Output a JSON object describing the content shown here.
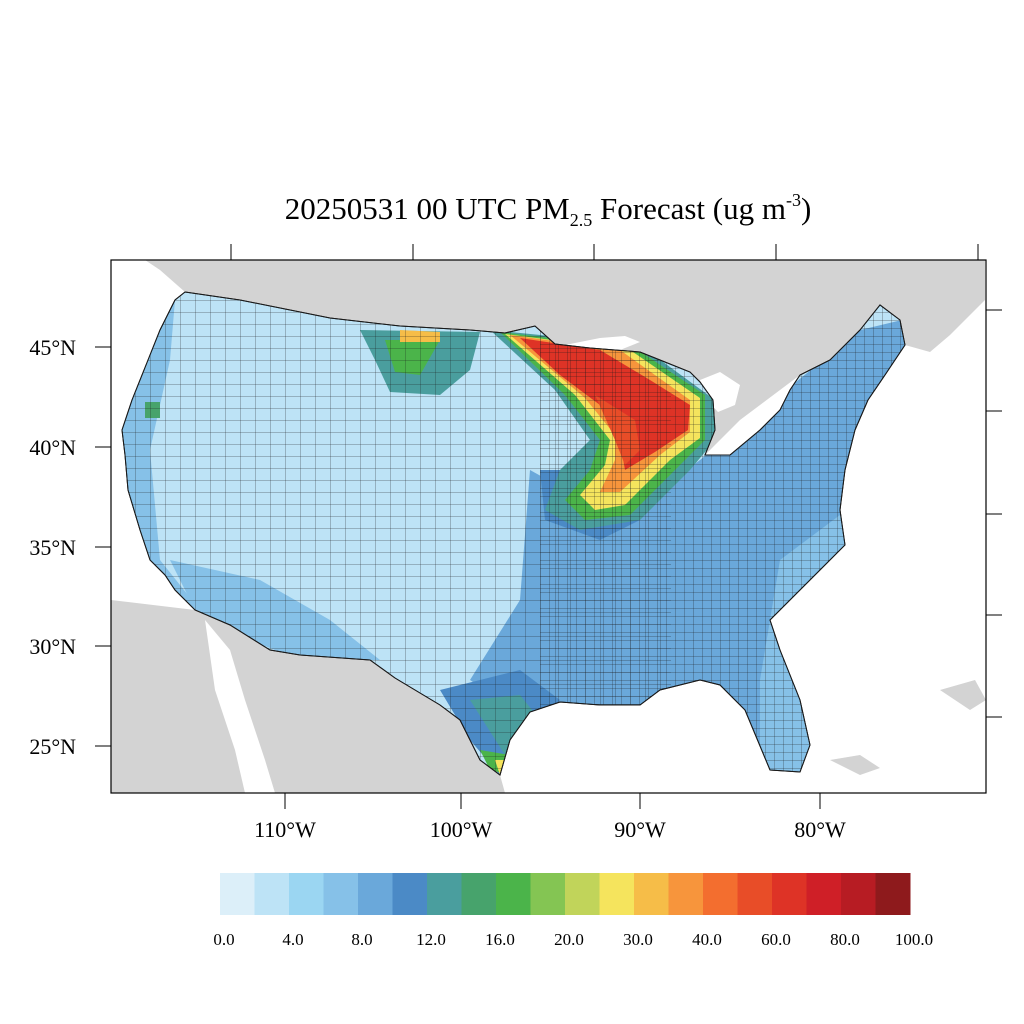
{
  "title": {
    "prefix": "20250531 00 UTC PM",
    "subscript": "2.5",
    "middle": " Forecast (ug m",
    "superscript": "-3",
    "suffix": ")"
  },
  "lat_labels": [
    "45°N",
    "40°N",
    "35°N",
    "30°N",
    "25°N"
  ],
  "lon_labels": [
    "110°W",
    "100°W",
    "90°W",
    "80°W"
  ],
  "colorbar": {
    "colors": [
      "#dceff9",
      "#bde3f6",
      "#9bd6f2",
      "#86c1e8",
      "#6aa8da",
      "#4b8ac6",
      "#4a9e9e",
      "#47a36c",
      "#4bb44a",
      "#84c553",
      "#c1d45a",
      "#f5e45d",
      "#f6bd48",
      "#f7953c",
      "#f36e2f",
      "#e84d28",
      "#de3326",
      "#cf1f27",
      "#b71c23",
      "#8e1a1c"
    ],
    "tick_labels": [
      "0.0",
      "4.0",
      "8.0",
      "12.0",
      "16.0",
      "20.0",
      "30.0",
      "40.0",
      "60.0",
      "80.0",
      "100.0"
    ]
  },
  "map_colors": {
    "land_other": "#d3d3d3",
    "water": "#ffffff",
    "low": "#bde3f6",
    "moderate": "#86c1e8",
    "high_east": "#6aa8da",
    "plume_orange": "#f7953c",
    "plume_red": "#de3326",
    "plume_green": "#4bb44a",
    "plume_yellow": "#f5e45d"
  }
}
